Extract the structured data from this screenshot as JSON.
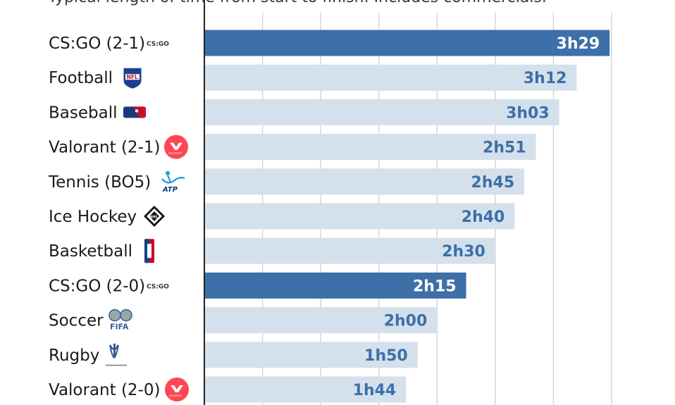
{
  "subtitle": "Typical length of time from start to finish. Includes commercials.",
  "colors": {
    "highlight_bar": "#3d6fa8",
    "normal_bar": "#d4e1ec",
    "highlight_label": "#ffffff",
    "normal_label": "#3d6fa8",
    "gridline": "#d6d6d6",
    "axis": "#222222"
  },
  "chart_data": {
    "type": "bar",
    "orientation": "horizontal",
    "unit": "minutes",
    "xlim": [
      0,
      210
    ],
    "grid": true,
    "categories": [
      "CS:GO (2-1)",
      "Football",
      "Baseball",
      "Valorant (2-1)",
      "Tennis (BO5)",
      "Ice Hockey",
      "Basketball",
      "CS:GO (2-0)",
      "Soccer",
      "Rugby",
      "Valorant (2-0)"
    ],
    "values": [
      209,
      192,
      183,
      171,
      165,
      160,
      150,
      135,
      120,
      110,
      104
    ],
    "value_labels": [
      "3h29",
      "3h12",
      "3h03",
      "2h51",
      "2h45",
      "2h40",
      "2h30",
      "2h15",
      "2h00",
      "1h50",
      "1h44"
    ],
    "highlighted": [
      true,
      false,
      false,
      false,
      false,
      false,
      false,
      true,
      false,
      false,
      false
    ],
    "logos": [
      "csgo-logo",
      "nfl-logo",
      "mlb-logo",
      "valorant-logo",
      "atp-logo",
      "nhl-logo",
      "nba-logo",
      "csgo-logo",
      "fifa-logo",
      "rugby-logo",
      "valorant-logo"
    ],
    "logo_texts": {
      "csgo": "CS:GO",
      "nfl": "NFL",
      "fifa": "FIFA",
      "atp": "ATP",
      "nhl": "NHL",
      "valorant": "VALORANT"
    }
  }
}
